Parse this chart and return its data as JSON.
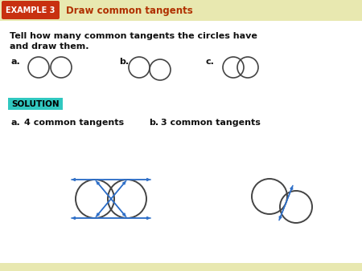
{
  "bg_color": "#fffff0",
  "header_bg": "#e8e8b0",
  "bottom_bg": "#e8e8b0",
  "title_bar_color": "#b03000",
  "example_box_color": "#c83010",
  "example_box_text": "EXAMPLE 3",
  "title_text": "Draw common tangents",
  "problem_text_line1": "Tell how many common tangents the circles have",
  "problem_text_line2": "and draw them.",
  "solution_box_color": "#30c8c0",
  "solution_text": "SOLUTION",
  "tangent_color": "#3070c8",
  "circle_color": "#444444",
  "text_color_dark": "#111111",
  "answer_a_label": "a.",
  "answer_a_text": "4 common tangents",
  "answer_b_label": "b.",
  "answer_b_text": "3 common tangents",
  "label_a": "a.",
  "label_b": "b.",
  "label_c": "c."
}
